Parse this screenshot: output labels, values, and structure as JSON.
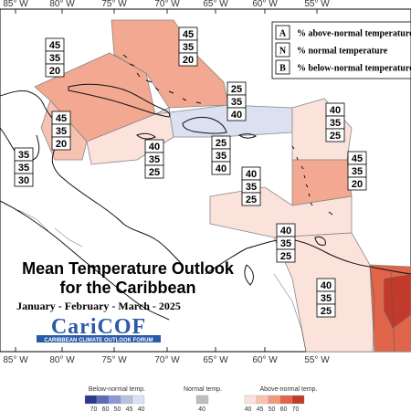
{
  "title_line1": "Mean Temperature Outlook",
  "title_line2": "for the Caribbean",
  "subtitle": "January - February - March - 2025",
  "logo": {
    "name": "CariCOF",
    "tagline": "CARIBBEAN CLIMATE OUTLOOK FORUM"
  },
  "lon_labels": [
    "85° W",
    "80° W",
    "75° W",
    "70° W",
    "65° W",
    "60° W",
    "55° W"
  ],
  "legend": [
    {
      "key": "A",
      "text": "% above-normal temperature"
    },
    {
      "key": "N",
      "text": "% normal temperature"
    },
    {
      "key": "B",
      "text": "% below-normal temperature"
    }
  ],
  "regions": [
    {
      "id": "gulf-mexico-nw",
      "values": [
        "45",
        "35",
        "20"
      ],
      "category": "above",
      "level": 45
    },
    {
      "id": "bahamas",
      "values": [
        "45",
        "35",
        "20"
      ],
      "category": "above",
      "level": 45
    },
    {
      "id": "central-america-north",
      "values": [
        "45",
        "35",
        "20"
      ],
      "category": "above",
      "level": 45
    },
    {
      "id": "central-america-west",
      "values": [
        "35",
        "35",
        "30"
      ],
      "category": "normal",
      "level": 35
    },
    {
      "id": "jamaica-region",
      "values": [
        "40",
        "35",
        "25"
      ],
      "category": "above",
      "level": 40
    },
    {
      "id": "hispaniola-north",
      "values": [
        "25",
        "35",
        "40"
      ],
      "category": "below",
      "level": 40
    },
    {
      "id": "hispaniola-south",
      "values": [
        "25",
        "35",
        "40"
      ],
      "category": "below",
      "level": 40
    },
    {
      "id": "leeward-north",
      "values": [
        "40",
        "35",
        "25"
      ],
      "category": "above",
      "level": 40
    },
    {
      "id": "caribbean-sea-central",
      "values": [
        "40",
        "35",
        "25"
      ],
      "category": "above",
      "level": 40
    },
    {
      "id": "barbados-region",
      "values": [
        "45",
        "35",
        "20"
      ],
      "category": "above",
      "level": 45
    },
    {
      "id": "southern-caribbean",
      "values": [
        "40",
        "35",
        "25"
      ],
      "category": "above",
      "level": 40
    },
    {
      "id": "guianas",
      "values": [
        "40",
        "35",
        "25"
      ],
      "category": "above",
      "level": 40
    }
  ],
  "colorbar": {
    "below_label": "Below-normal temp.",
    "normal_label": "Normal temp.",
    "above_label": "Above-normal temp.",
    "below_ticks": [
      "70",
      "60",
      "50",
      "45",
      "40"
    ],
    "normal_ticks": [
      "40"
    ],
    "above_ticks": [
      "40",
      "45",
      "50",
      "60",
      "70"
    ],
    "below_colors": [
      "#2b3a8c",
      "#5a6bb8",
      "#8c98cf",
      "#b9c1e3",
      "#dce1f2"
    ],
    "normal_color": "#bdbdbd",
    "above_colors": [
      "#fbe3dc",
      "#f7c2b1",
      "#ef9a80",
      "#e0654a",
      "#c23a2b"
    ]
  }
}
